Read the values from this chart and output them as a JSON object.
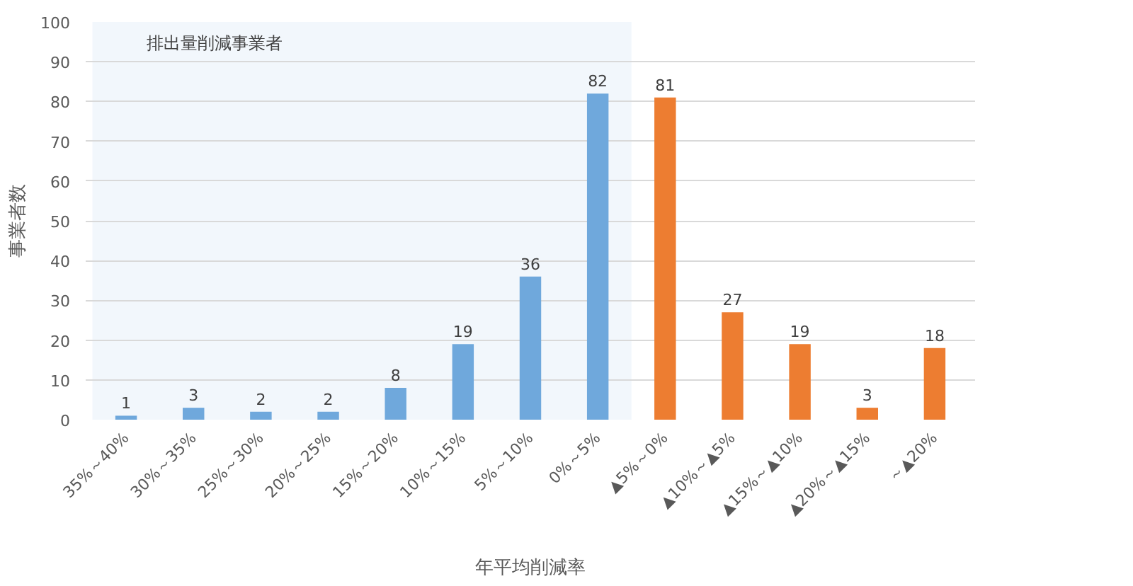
{
  "chart_data": {
    "type": "bar",
    "xlabel": "年平均削減率",
    "ylabel": "事業者数",
    "categories": [
      "35%～40%",
      "30%～35%",
      "25%～30%",
      "20%～25%",
      "15%～20%",
      "10%～15%",
      "5%～10%",
      "0%～5%",
      "▲5%～0%",
      "▲10%～▲5%",
      "▲15%～▲10%",
      "▲20%～▲15%",
      "～▲20%"
    ],
    "values": [
      1,
      3,
      2,
      2,
      8,
      19,
      36,
      82,
      81,
      27,
      19,
      3,
      18
    ],
    "colors": [
      "#6fa8dc",
      "#6fa8dc",
      "#6fa8dc",
      "#6fa8dc",
      "#6fa8dc",
      "#6fa8dc",
      "#6fa8dc",
      "#6fa8dc",
      "#ed7d31",
      "#ed7d31",
      "#ed7d31",
      "#ed7d31",
      "#ed7d31"
    ],
    "ylim": [
      0,
      100
    ],
    "yticks": [
      0,
      10,
      20,
      30,
      40,
      50,
      60,
      70,
      80,
      90,
      100
    ],
    "grid": "y",
    "data_labels": true,
    "bands": [
      {
        "axis": "x",
        "from": "35%～40%",
        "to": "0%～5%",
        "label": "排出量削減事業者",
        "color": "#f2f7fc"
      }
    ]
  }
}
